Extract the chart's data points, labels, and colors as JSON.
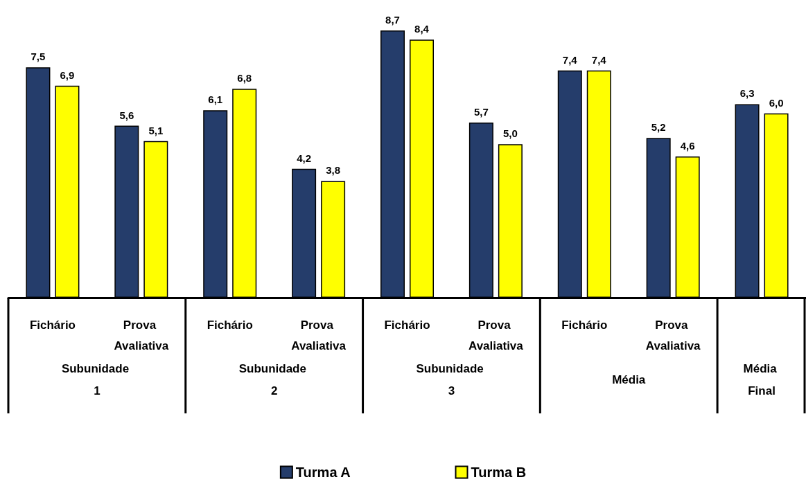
{
  "chart_data": {
    "type": "bar",
    "categories": [
      "Fichário",
      "Prova Avaliativa",
      "Fichário",
      "Prova Avaliativa",
      "Fichário",
      "Prova Avaliativa",
      "Fichário",
      "Prova Avaliativa",
      null
    ],
    "annotations": [
      "Subunidade 1",
      "Subunidade 2",
      "Subunidade 3",
      "Média",
      "Média Final"
    ],
    "series": [
      {
        "name": "Turma A",
        "color": "#253d6b",
        "values": [
          7.5,
          5.6,
          6.1,
          4.2,
          8.7,
          5.7,
          7.4,
          5.2,
          6.3
        ],
        "value_labels": [
          "7,5",
          "5,6",
          "6,1",
          "4,2",
          "8,7",
          "5,7",
          "7,4",
          "5,2",
          "6,3"
        ]
      },
      {
        "name": "Turma B",
        "color": "#ffff00",
        "values": [
          6.9,
          5.1,
          6.8,
          3.8,
          8.4,
          5.0,
          7.4,
          4.6,
          6.0
        ],
        "value_labels": [
          "6,9",
          "5,1",
          "6,8",
          "3,8",
          "8,4",
          "5,0",
          "7,4",
          "4,6",
          "6,0"
        ]
      }
    ],
    "legend": "bottom",
    "grid": false
  }
}
